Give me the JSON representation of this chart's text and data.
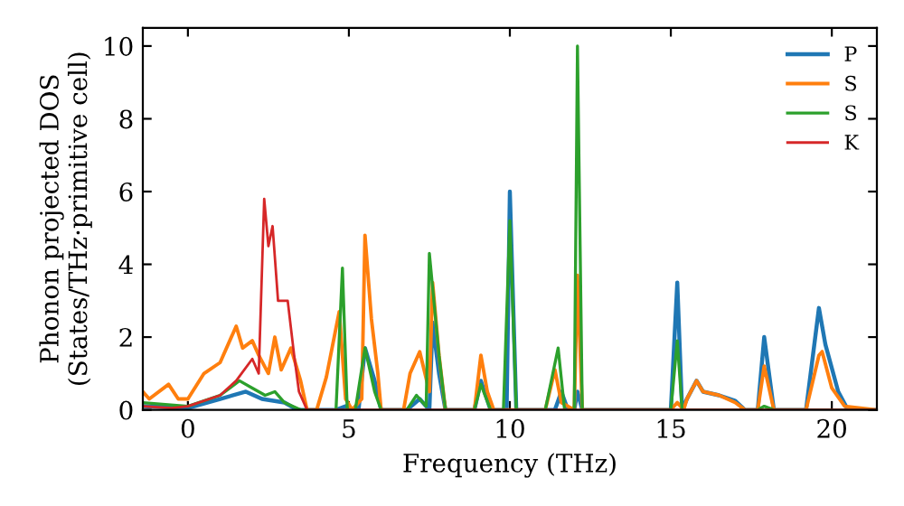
{
  "chart_data": {
    "type": "line",
    "xlabel": "Frequency (THz)",
    "ylabel": "Phonon projected DOS\n(States/THz·primitive cell)",
    "xlim": [
      -1.4,
      21.4
    ],
    "ylim": [
      0,
      10.5
    ],
    "xticks": [
      0,
      5,
      10,
      15,
      20
    ],
    "yticks": [
      0,
      2,
      4,
      6,
      8,
      10
    ],
    "grid": false,
    "legend": "top right",
    "marker": "none",
    "line_style": "solid",
    "series": [
      {
        "name": "P",
        "color": "#1f77b4",
        "x": [
          -1.4,
          0,
          1,
          1.8,
          2.3,
          3,
          3.4,
          4.6,
          4.9,
          5.1,
          5.3,
          5.5,
          5.8,
          6.0,
          6.8,
          7.2,
          7.5,
          7.6,
          7.8,
          8.0,
          8.9,
          9.1,
          9.4,
          9.9,
          10.0,
          10.2,
          11.4,
          11.6,
          11.8,
          12.0,
          12.1,
          12.25,
          15.0,
          15.2,
          15.35,
          15.5,
          15.8,
          16.0,
          16.5,
          17.0,
          17.3,
          17.7,
          17.9,
          18.2,
          19.2,
          19.6,
          19.8,
          20.2,
          20.5,
          21.4
        ],
        "values": [
          0.1,
          0.05,
          0.3,
          0.5,
          0.3,
          0.2,
          0,
          0,
          0.1,
          0,
          0,
          1.7,
          0.8,
          0,
          0,
          0.3,
          0,
          2.4,
          1.0,
          0,
          0,
          0.8,
          0,
          0,
          6.0,
          0,
          0,
          0.5,
          0,
          0,
          0.5,
          0,
          0,
          3.5,
          0,
          0.3,
          0.8,
          0.5,
          0.4,
          0.25,
          0,
          0,
          2.0,
          0,
          0,
          2.8,
          1.8,
          0.5,
          0,
          0
        ]
      },
      {
        "name": "S",
        "color": "#ff7f0e",
        "x": [
          -1.4,
          -1.2,
          -0.6,
          -0.3,
          0,
          0.5,
          1.0,
          1.5,
          1.7,
          2.0,
          2.2,
          2.5,
          2.7,
          2.9,
          3.2,
          3.5,
          3.7,
          4.0,
          4.3,
          4.7,
          4.9,
          5.1,
          5.4,
          5.5,
          5.7,
          5.9,
          6.0,
          6.7,
          6.9,
          7.2,
          7.5,
          7.6,
          7.8,
          8.0,
          8.9,
          9.1,
          9.3,
          9.5,
          11.1,
          11.4,
          11.6,
          12.0,
          12.1,
          12.25,
          15.0,
          15.2,
          15.4,
          15.5,
          15.8,
          16.0,
          16.5,
          17.0,
          17.3,
          17.7,
          17.9,
          18.2,
          19.2,
          19.6,
          19.7,
          20.0,
          20.4,
          21.4
        ],
        "values": [
          0.5,
          0.3,
          0.7,
          0.3,
          0.3,
          1.0,
          1.3,
          2.3,
          1.7,
          1.9,
          1.5,
          1.0,
          2.0,
          1.1,
          1.7,
          0.8,
          0,
          0,
          0.9,
          2.7,
          0.3,
          0,
          0.3,
          4.8,
          2.5,
          1.0,
          0,
          0,
          1.0,
          1.6,
          0.5,
          3.5,
          1.5,
          0,
          0,
          1.5,
          0.5,
          0,
          0,
          1.1,
          0.2,
          0,
          3.7,
          0,
          0,
          0.2,
          0,
          0.3,
          0.8,
          0.5,
          0.4,
          0.2,
          0,
          0,
          1.2,
          0,
          0,
          1.5,
          1.6,
          0.6,
          0.1,
          0
        ]
      },
      {
        "name": "S",
        "color": "#2ca02c",
        "x": [
          -1.4,
          0,
          1,
          1.6,
          2,
          2.4,
          2.7,
          3,
          3.5,
          4.6,
          4.8,
          4.95,
          5.2,
          5.5,
          5.8,
          6.0,
          6.8,
          7.1,
          7.4,
          7.5,
          7.8,
          8.0,
          8.9,
          9.1,
          9.4,
          9.8,
          10.0,
          10.2,
          11.1,
          11.5,
          11.7,
          12.0,
          12.1,
          12.25,
          15.0,
          15.2,
          15.35,
          17.7,
          17.9,
          18.2,
          21.4
        ],
        "values": [
          0.2,
          0.1,
          0.4,
          0.8,
          0.6,
          0.4,
          0.5,
          0.2,
          0,
          0,
          3.9,
          0,
          0,
          1.7,
          0.5,
          0,
          0,
          0.4,
          0.1,
          4.3,
          1.5,
          0,
          0,
          0.7,
          0,
          0,
          5.2,
          0,
          0,
          1.7,
          0,
          0,
          10.0,
          0,
          0,
          1.9,
          0,
          0,
          0.1,
          0,
          0
        ]
      },
      {
        "name": "K",
        "color": "#d62728",
        "x": [
          -1.4,
          -0.5,
          0,
          1,
          1.5,
          2,
          2.2,
          2.37,
          2.5,
          2.63,
          2.8,
          3.1,
          3.3,
          3.45,
          3.7,
          21.4
        ],
        "values": [
          0.1,
          0.05,
          0.1,
          0.4,
          0.8,
          1.4,
          1.0,
          5.8,
          4.5,
          5.05,
          3.0,
          3.0,
          1.5,
          0.5,
          0,
          0
        ]
      }
    ]
  }
}
